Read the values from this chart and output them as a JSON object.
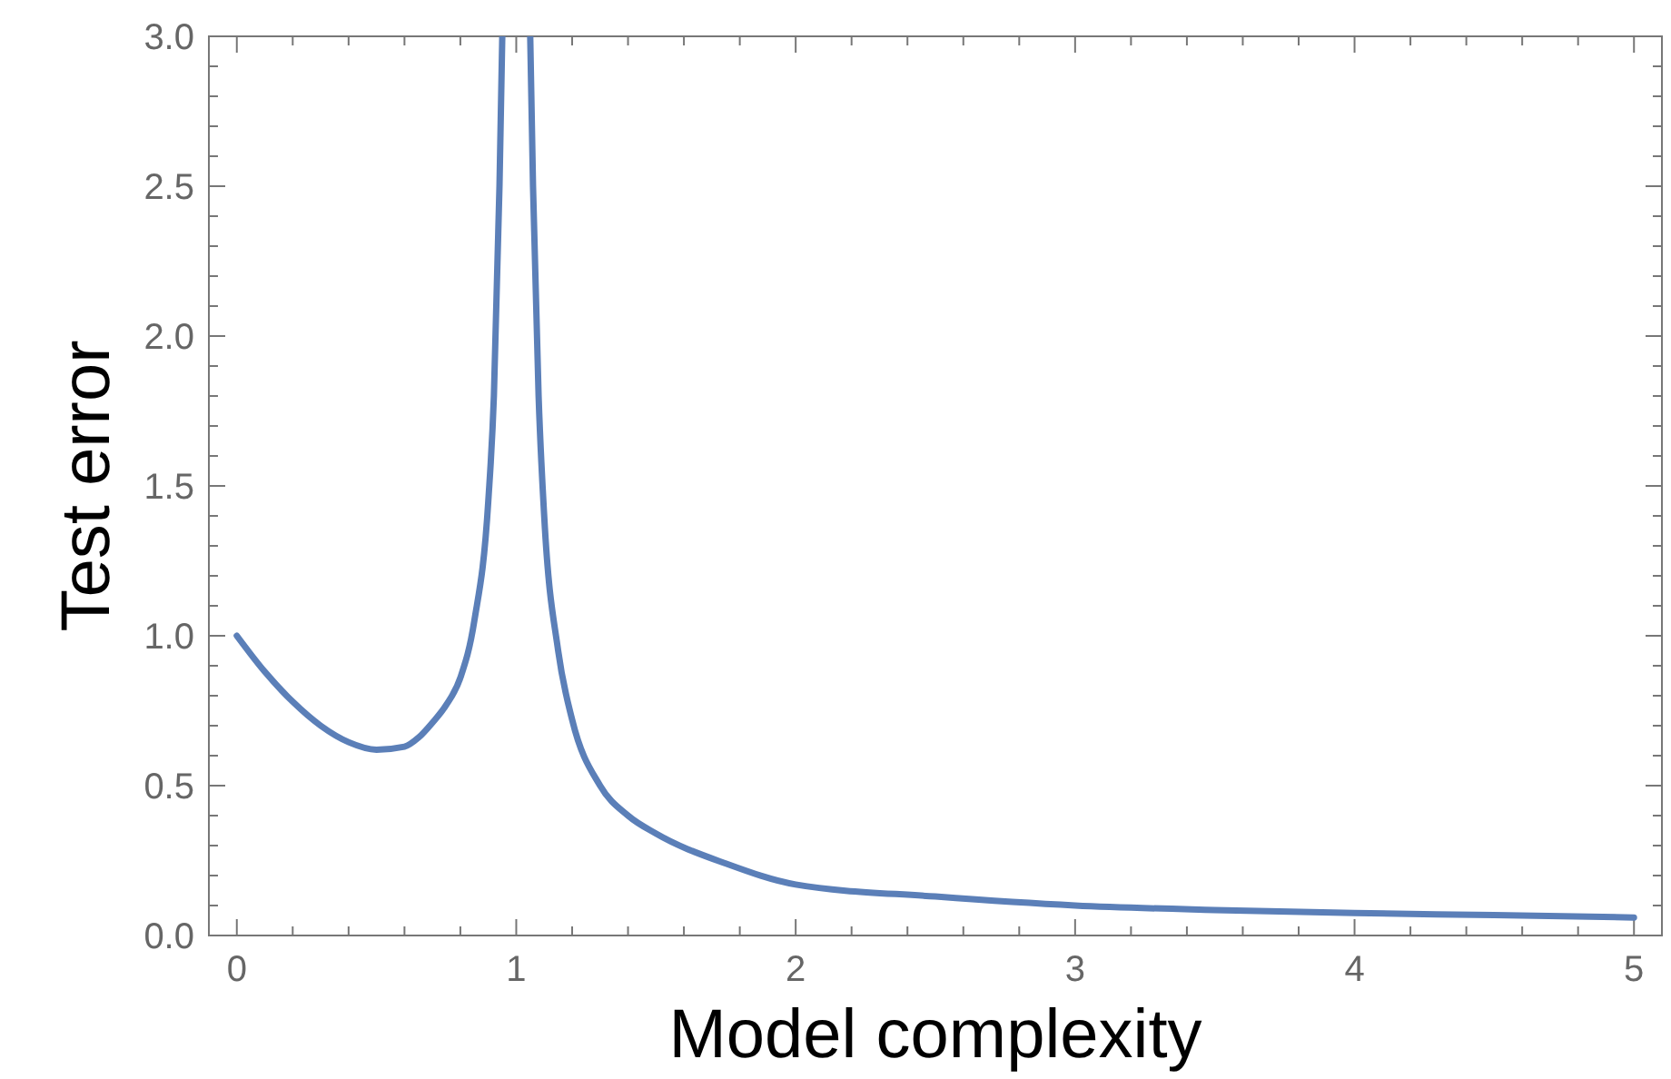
{
  "chart_data": {
    "type": "line",
    "xlabel": "Model complexity",
    "ylabel": "Test error",
    "xlim": [
      -0.1,
      5.1
    ],
    "ylim": [
      0,
      3
    ],
    "xticks": [
      0,
      {
        "value": 0.2,
        "label": null
      },
      {
        "value": 0.4,
        "label": null
      },
      {
        "value": 0.6,
        "label": null
      },
      {
        "value": 0.8,
        "label": null
      },
      1,
      {
        "value": 1.2,
        "label": null
      },
      {
        "value": 1.4,
        "label": null
      },
      {
        "value": 1.6,
        "label": null
      },
      {
        "value": 1.8,
        "label": null
      },
      2,
      {
        "value": 2.2,
        "label": null
      },
      {
        "value": 2.4,
        "label": null
      },
      {
        "value": 2.6,
        "label": null
      },
      {
        "value": 2.8,
        "label": null
      },
      3,
      {
        "value": 3.2,
        "label": null
      },
      {
        "value": 3.4,
        "label": null
      },
      {
        "value": 3.6,
        "label": null
      },
      {
        "value": 3.8,
        "label": null
      },
      4,
      {
        "value": 4.2,
        "label": null
      },
      {
        "value": 4.4,
        "label": null
      },
      {
        "value": 4.6,
        "label": null
      },
      {
        "value": 4.8,
        "label": null
      },
      5
    ],
    "yticks": [
      {
        "value": 0,
        "label": "0.0"
      },
      {
        "value": 0.1,
        "label": null
      },
      {
        "value": 0.2,
        "label": null
      },
      {
        "value": 0.3,
        "label": null
      },
      {
        "value": 0.4,
        "label": null
      },
      0.5,
      {
        "value": 0.6,
        "label": null
      },
      {
        "value": 0.7,
        "label": null
      },
      {
        "value": 0.8,
        "label": null
      },
      {
        "value": 0.9,
        "label": null
      },
      {
        "value": 1,
        "label": "1.0"
      },
      {
        "value": 1.1,
        "label": null
      },
      {
        "value": 1.2,
        "label": null
      },
      {
        "value": 1.3,
        "label": null
      },
      {
        "value": 1.4,
        "label": null
      },
      1.5,
      {
        "value": 1.6,
        "label": null
      },
      {
        "value": 1.7,
        "label": null
      },
      {
        "value": 1.8,
        "label": null
      },
      {
        "value": 1.9,
        "label": null
      },
      {
        "value": 2,
        "label": "2.0"
      },
      {
        "value": 2.1,
        "label": null
      },
      {
        "value": 2.2,
        "label": null
      },
      {
        "value": 2.3,
        "label": null
      },
      {
        "value": 2.4,
        "label": null
      },
      2.5,
      {
        "value": 2.6,
        "label": null
      },
      {
        "value": 2.7,
        "label": null
      },
      {
        "value": 2.8,
        "label": null
      },
      {
        "value": 2.9,
        "label": null
      },
      {
        "value": 3,
        "label": "3.0"
      }
    ],
    "grid": false,
    "line_style": "solid",
    "series": [
      {
        "color": "#5b7fb8",
        "x": [
          0,
          0.1,
          0.2,
          0.3,
          0.4,
          0.5,
          0.6,
          0.65,
          0.7,
          0.75,
          0.8,
          0.85,
          0.9,
          0.92,
          0.94,
          0.95
        ],
        "values": [
          1,
          0.88,
          0.78,
          0.7,
          0.645,
          0.62,
          0.63,
          0.66,
          0.71,
          0.77,
          0.86,
          1.05,
          1.45,
          1.8,
          2.5,
          3
        ]
      },
      {
        "color": "#5b7fb8",
        "x": [
          1.05,
          1.06,
          1.08,
          1.1,
          1.15,
          1.2,
          1.3,
          1.4,
          1.5,
          1.75,
          2,
          2.5,
          3,
          3.5,
          4,
          4.5,
          5
        ],
        "values": [
          3,
          2.5,
          1.8,
          1.4,
          0.95,
          0.72,
          0.5,
          0.4,
          0.34,
          0.24,
          0.17,
          0.13,
          0.1,
          0.085,
          0.075,
          0.068,
          0.06
        ]
      }
    ]
  }
}
